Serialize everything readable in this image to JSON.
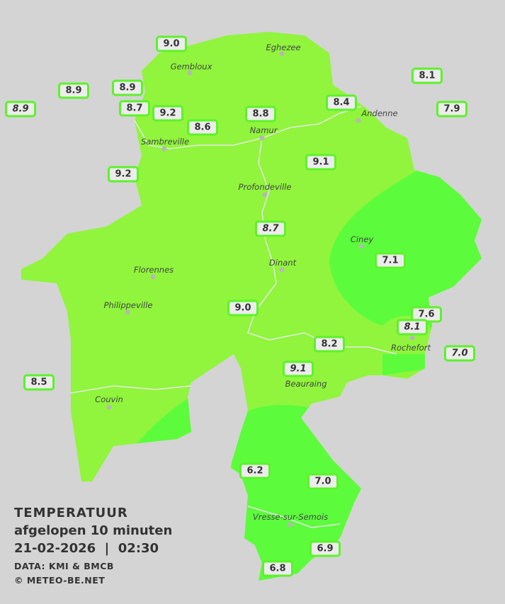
{
  "legend": {
    "title": "TEMPERATUUR",
    "subtitle": "afgelopen 10 minuten",
    "datetime": "21-02-2026  |  02:30",
    "source": "DATA: KMI & BMCB",
    "copyright": "© METEO-BE.NET"
  },
  "colors": {
    "background": "#d4d4d4",
    "zone_light": "#90f53c",
    "zone_dark": "#5cfc3c",
    "label_border": "#5cf22a"
  },
  "cities": [
    "Eghezee",
    "Gembloux",
    "Andenne",
    "Namur",
    "Sambreville",
    "Profondeville",
    "Ciney",
    "Dinant",
    "Florennes",
    "Philippeville",
    "Rochefort",
    "Beauraing",
    "Couvin",
    "Vresse-sur-Semois"
  ],
  "stations": [
    {
      "value": "9.0",
      "italic": false
    },
    {
      "value": "8.1",
      "italic": false
    },
    {
      "value": "8.9",
      "italic": false
    },
    {
      "value": "8.9",
      "italic": false
    },
    {
      "value": "8.9",
      "italic": true
    },
    {
      "value": "8.4",
      "italic": false
    },
    {
      "value": "7.9",
      "italic": false
    },
    {
      "value": "8.7",
      "italic": false
    },
    {
      "value": "9.2",
      "italic": false
    },
    {
      "value": "8.8",
      "italic": false
    },
    {
      "value": "8.6",
      "italic": false
    },
    {
      "value": "9.1",
      "italic": false
    },
    {
      "value": "9.2",
      "italic": false
    },
    {
      "value": "8.7",
      "italic": true
    },
    {
      "value": "7.1",
      "italic": false
    },
    {
      "value": "9.0",
      "italic": false
    },
    {
      "value": "7.6",
      "italic": false
    },
    {
      "value": "8.1",
      "italic": true
    },
    {
      "value": "8.2",
      "italic": false
    },
    {
      "value": "7.0",
      "italic": true
    },
    {
      "value": "9.1",
      "italic": true
    },
    {
      "value": "8.5",
      "italic": false
    },
    {
      "value": "6.2",
      "italic": false
    },
    {
      "value": "7.0",
      "italic": false
    },
    {
      "value": "6.9",
      "italic": false
    },
    {
      "value": "6.8",
      "italic": false
    }
  ]
}
